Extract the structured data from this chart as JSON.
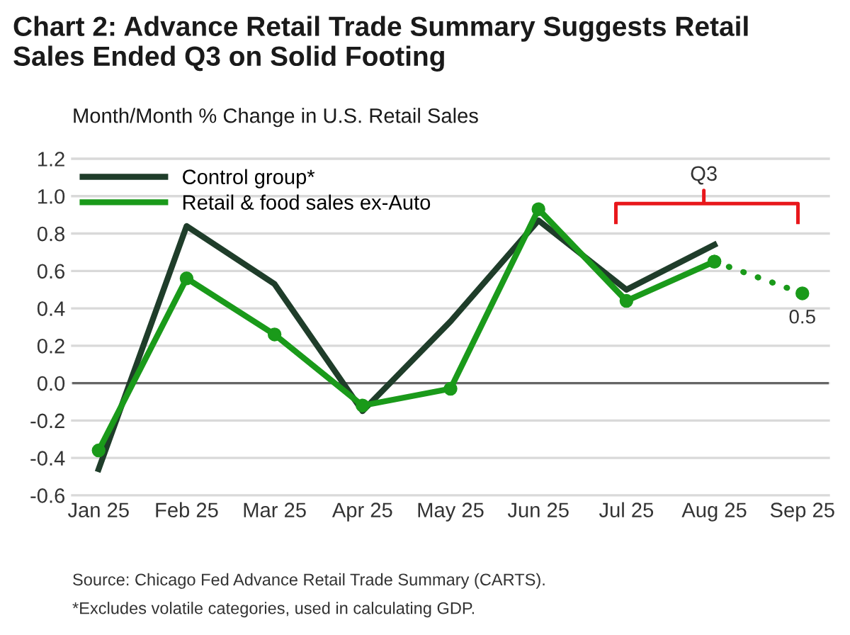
{
  "chart_data": {
    "type": "line",
    "title": "Chart 2: Advance Retail Trade Summary Suggests Retail\nSales Ended Q3 on Solid Footing",
    "subtitle": "Month/Month % Change in U.S. Retail Sales",
    "categories": [
      "Jan 25",
      "Feb 25",
      "Mar 25",
      "Apr 25",
      "May 25",
      "Jun 25",
      "Jul 25",
      "Aug 25",
      "Sep 25"
    ],
    "series": [
      {
        "name": "Control group*",
        "color": "#1f3d2a",
        "marker": "none",
        "line_style": "solid",
        "values": [
          -0.46,
          0.84,
          0.53,
          -0.15,
          0.33,
          0.87,
          0.5,
          0.74,
          null
        ]
      },
      {
        "name": "Retail & food sales ex-Auto",
        "color": "#1a9a1a",
        "marker": "circle",
        "line_style": "solid",
        "values": [
          -0.36,
          0.56,
          0.26,
          -0.12,
          -0.03,
          0.93,
          0.44,
          0.65,
          null
        ]
      },
      {
        "color": "#1a9a1a",
        "marker": "circle",
        "line_style": "dotted",
        "values": [
          null,
          null,
          null,
          null,
          null,
          null,
          null,
          0.65,
          0.48
        ],
        "value_labels": [
          null,
          null,
          null,
          null,
          null,
          null,
          null,
          null,
          "0.5"
        ]
      }
    ],
    "ylim": [
      -0.6,
      1.2
    ],
    "yticks": [
      {
        "value": -0.6,
        "label": "-0.6"
      },
      {
        "value": -0.4,
        "label": "-0.4"
      },
      {
        "value": -0.2,
        "label": "-0.2"
      },
      {
        "value": 0,
        "label": "0.0"
      },
      {
        "value": 0.2,
        "label": "0.2"
      },
      {
        "value": 0.4,
        "label": "0.4"
      },
      {
        "value": 0.6,
        "label": "0.6"
      },
      {
        "value": 0.8,
        "label": "0.8"
      },
      {
        "value": 1.0,
        "label": "1.0"
      },
      {
        "value": 1.2,
        "label": "1.2"
      }
    ],
    "grid": "y",
    "legend": "top left",
    "ref_lines": [
      {
        "axis": "y",
        "value": 0,
        "color": "#666666"
      }
    ],
    "annotations": [
      "Q3",
      "Source: Chicago Fed Advance Retail Trade Summary (CARTS).",
      "*Excludes volatile categories, used in calculating GDP."
    ]
  }
}
